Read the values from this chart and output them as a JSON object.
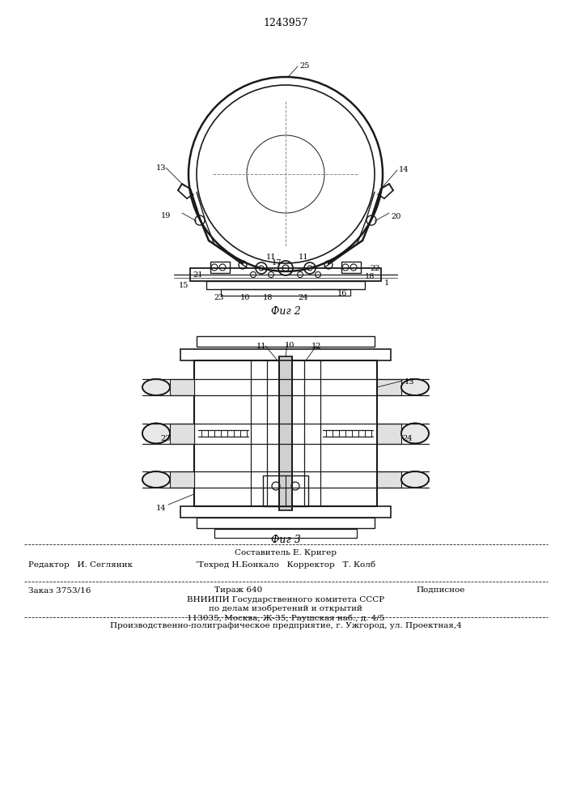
{
  "patent_number": "1243957",
  "fig2_caption": "Фиг 2",
  "fig3_caption": "Фиг 3",
  "production_line": "Производственно-полиграфическое предприятие, г. Ужгород, ул. Проектная,4",
  "footer_row1_center": "Составитель Е. Кригер",
  "footer_row2_left": "Редактор   И. Сегляник",
  "footer_row2_center": "ʹТехред Н.Бонкало   Корректор   Т. Колб",
  "info_order": "Заказ 3753/16",
  "info_tirazh": "Тираж 640",
  "info_podp": "Подписное",
  "info_vniip1": "ВНИИПИ Государственного комитета СССР",
  "info_vniip2": "по делам изобретений и открытий",
  "info_addr": "113035, Москва, Ж-35, Раушская наб., д. 4/5",
  "bg": "#ffffff",
  "lc": "#1a1a1a"
}
